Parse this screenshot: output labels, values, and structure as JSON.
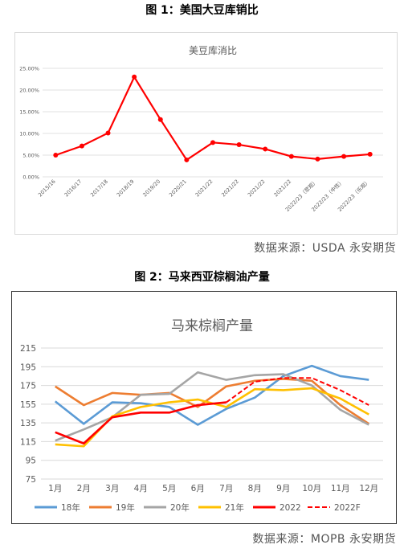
{
  "figures": {
    "fig1_title": "图 1：美国大豆库销比",
    "fig1_source": "数据来源：USDA 永安期货",
    "fig2_title": "图 2：马来西亚棕榈油产量",
    "fig2_source": "数据来源：MOPB 永安期货"
  },
  "chart_data": [
    {
      "type": "line",
      "title": "美豆库消比",
      "categories": [
        "2015/16",
        "2016/17",
        "2017/18",
        "2018/19",
        "2019/20",
        "2020/21",
        "2021/22",
        "2021/22",
        "2021/22",
        "2021/22",
        "2022/23（悲观）",
        "2022/23（中性）",
        "2022/23（乐观）"
      ],
      "series": [
        {
          "values": [
            5.0,
            7.1,
            10.1,
            23.0,
            13.2,
            3.9,
            7.9,
            7.4,
            6.4,
            4.7,
            4.1,
            4.7,
            5.2
          ],
          "color": "#ff0000"
        }
      ],
      "ylim": [
        0,
        25
      ],
      "yticks": [
        "0.00%",
        "5.00%",
        "10.00%",
        "15.00%",
        "20.00%",
        "25.00%"
      ],
      "grid": true
    },
    {
      "type": "line",
      "title": "马来棕榈产量",
      "categories": [
        "1月",
        "2月",
        "3月",
        "4月",
        "5月",
        "6月",
        "7月",
        "8月",
        "9月",
        "10月",
        "11月",
        "12月"
      ],
      "ylim": [
        75,
        215
      ],
      "yticks": [
        "75",
        "95",
        "115",
        "135",
        "155",
        "175",
        "195",
        "215"
      ],
      "grid": true,
      "legend_position": "bottom",
      "series": [
        {
          "name": "18年",
          "color": "#5b9bd5",
          "values": [
            158,
            134,
            157,
            156,
            152,
            133,
            150,
            162,
            185,
            196,
            185,
            181
          ]
        },
        {
          "name": "19年",
          "color": "#ed7d31",
          "values": [
            174,
            154,
            167,
            165,
            167,
            152,
            174,
            180,
            182,
            180,
            154,
            134
          ]
        },
        {
          "name": "20年",
          "color": "#a5a5a5",
          "values": [
            116,
            128,
            141,
            165,
            166,
            189,
            181,
            186,
            187,
            175,
            149,
            133
          ]
        },
        {
          "name": "21年",
          "color": "#ffc000",
          "values": [
            112,
            110,
            142,
            152,
            157,
            160,
            152,
            171,
            170,
            172,
            161,
            144
          ]
        },
        {
          "name": "2022",
          "color": "#ff0000",
          "values": [
            125,
            113,
            141,
            146,
            146,
            154,
            157,
            null,
            null,
            null,
            null,
            null
          ]
        },
        {
          "name": "2022F",
          "color": "#ff0000",
          "dashed": true,
          "values": [
            null,
            null,
            null,
            null,
            null,
            null,
            157,
            179,
            183,
            183,
            170,
            154
          ]
        }
      ]
    }
  ]
}
